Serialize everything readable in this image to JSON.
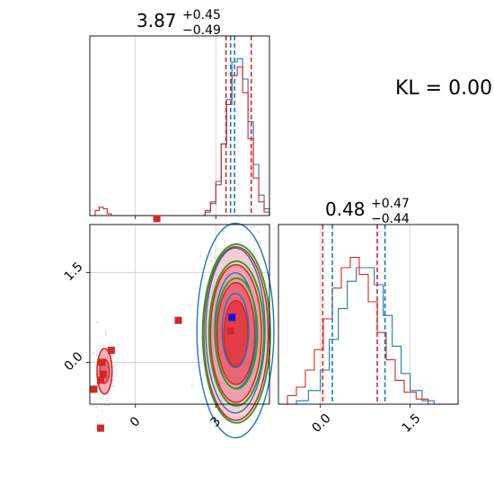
{
  "chart_data": {
    "type": "corner",
    "annotation": "KL = 0.00",
    "params": [
      {
        "median": "3.87",
        "plus": "+0.45",
        "minus": "−0.49"
      },
      {
        "median": "0.48",
        "plus": "+0.47",
        "minus": "−0.44"
      }
    ],
    "x_ticks_p1": [
      "0",
      "3"
    ],
    "x_ticks_p2": [
      "0.0",
      "1.5"
    ],
    "y_ticks_p2": [
      "0.0",
      "1.5"
    ],
    "xlim_p1": [
      -1.7,
      5.0
    ],
    "xlim_p2": [
      -0.7,
      2.3
    ],
    "quantile_lines": {
      "red": {
        "p1": [
          3.38,
          4.32
        ],
        "p2": [
          0.04,
          0.95
        ]
      },
      "blue": {
        "p1": [
          3.55,
          3.7
        ],
        "p2": [
          0.2,
          1.08
        ]
      }
    },
    "hist1_red": [
      [
        -1.6,
        0
      ],
      [
        -1.5,
        0.03
      ],
      [
        -1.35,
        0.05
      ],
      [
        -1.2,
        0.04
      ],
      [
        -1.05,
        0.01
      ],
      [
        -0.9,
        0
      ],
      [
        2.4,
        0
      ],
      [
        2.6,
        0.03
      ],
      [
        2.8,
        0.08
      ],
      [
        3.0,
        0.2
      ],
      [
        3.2,
        0.42
      ],
      [
        3.4,
        0.65
      ],
      [
        3.6,
        0.82
      ],
      [
        3.8,
        0.87
      ],
      [
        4.0,
        0.72
      ],
      [
        4.2,
        0.45
      ],
      [
        4.4,
        0.22
      ],
      [
        4.6,
        0.08
      ],
      [
        4.8,
        0.02
      ],
      [
        5.0,
        0
      ]
    ],
    "hist1_blue": [
      [
        2.4,
        0
      ],
      [
        2.6,
        0.02
      ],
      [
        2.8,
        0.07
      ],
      [
        3.0,
        0.18
      ],
      [
        3.2,
        0.42
      ],
      [
        3.4,
        0.68
      ],
      [
        3.6,
        0.9
      ],
      [
        3.8,
        0.92
      ],
      [
        4.0,
        0.8
      ],
      [
        4.2,
        0.55
      ],
      [
        4.4,
        0.3
      ],
      [
        4.6,
        0.12
      ],
      [
        4.8,
        0.04
      ],
      [
        5.0,
        0
      ]
    ],
    "hist2_red": [
      [
        -0.7,
        0
      ],
      [
        -0.55,
        0.05
      ],
      [
        -0.4,
        0.1
      ],
      [
        -0.25,
        0.2
      ],
      [
        -0.1,
        0.32
      ],
      [
        0.05,
        0.5
      ],
      [
        0.2,
        0.68
      ],
      [
        0.35,
        0.8
      ],
      [
        0.5,
        0.86
      ],
      [
        0.65,
        0.76
      ],
      [
        0.8,
        0.6
      ],
      [
        0.95,
        0.42
      ],
      [
        1.1,
        0.26
      ],
      [
        1.25,
        0.14
      ],
      [
        1.4,
        0.07
      ],
      [
        1.6,
        0.03
      ],
      [
        1.8,
        0
      ],
      [
        2.3,
        0
      ]
    ],
    "hist2_blue": [
      [
        -0.7,
        0
      ],
      [
        -0.4,
        0.02
      ],
      [
        -0.2,
        0.08
      ],
      [
        0.0,
        0.2
      ],
      [
        0.15,
        0.38
      ],
      [
        0.3,
        0.56
      ],
      [
        0.45,
        0.72
      ],
      [
        0.6,
        0.8
      ],
      [
        0.75,
        0.8
      ],
      [
        0.9,
        0.7
      ],
      [
        1.05,
        0.52
      ],
      [
        1.2,
        0.34
      ],
      [
        1.35,
        0.18
      ],
      [
        1.5,
        0.08
      ],
      [
        1.7,
        0.02
      ],
      [
        1.9,
        0
      ],
      [
        2.3,
        0
      ]
    ],
    "samples_red_squares": [
      [
        0.8,
        2.4
      ],
      [
        1.6,
        0.7
      ],
      [
        3.55,
        0.52
      ],
      [
        -0.9,
        0.2
      ],
      [
        -1.25,
        0.0
      ],
      [
        -1.2,
        -0.2
      ],
      [
        -1.3,
        -0.3
      ],
      [
        -1.55,
        -0.45
      ],
      [
        -1.3,
        -1.1
      ]
    ],
    "samples_blue_squares": [
      [
        3.6,
        0.75
      ]
    ],
    "contours_main": {
      "center": [
        3.75,
        0.48
      ],
      "sx": [
        0.45,
        0.7,
        0.95,
        1.2
      ],
      "sy": [
        0.55,
        0.85,
        1.15,
        1.45
      ]
    },
    "contours_outlier": {
      "center": [
        -1.15,
        -0.15
      ],
      "sx": [
        0.18,
        0.28
      ],
      "sy": [
        0.2,
        0.38
      ]
    },
    "colors": {
      "red": "#d62728",
      "blue": "#1f77b4",
      "green": "#2ca02c",
      "pink": "#f4a6b0"
    }
  }
}
